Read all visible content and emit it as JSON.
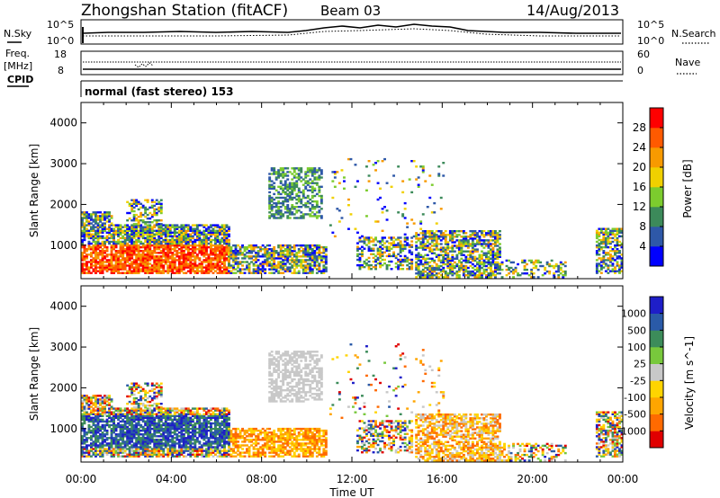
{
  "header": {
    "station": "Zhongshan Station (fitACF)",
    "beam": "Beam 03",
    "date": "14/Aug/2013"
  },
  "nsky_panel": {
    "left_label": "N.Sky",
    "right_label": "N.Search",
    "left_ticks": [
      "10^5",
      "10^0"
    ],
    "right_ticks": [
      "10^5",
      "10^0"
    ]
  },
  "freq_panel": {
    "left_label_line1": "Freq.",
    "left_label_line2": "[MHz]",
    "right_label": "Nave",
    "left_ticks": [
      "18",
      "8"
    ],
    "right_ticks": [
      "60",
      "0"
    ]
  },
  "cpid_panel": {
    "label": "CPID",
    "mode": "normal (fast stereo) 153"
  },
  "colors": {
    "power_scale": [
      "#0000ff",
      "#2e58a8",
      "#3c8a5a",
      "#7ccc2e",
      "#f0d000",
      "#f79a00",
      "#ff5a00",
      "#ff0000"
    ],
    "velocity_scale": [
      "#e00000",
      "#ff6a00",
      "#ffa500",
      "#ffd400",
      "#c8c8c8",
      "#78c83c",
      "#3c8c5a",
      "#2a5aa8",
      "#1e1ec8"
    ]
  },
  "chart_data": [
    {
      "type": "heatmap",
      "title": "",
      "xlabel": "",
      "ylabel": "Slant Range [km]",
      "x_ticks": [
        "00:00",
        "04:00",
        "08:00",
        "12:00",
        "16:00",
        "20:00",
        "00:00"
      ],
      "y_ticks": [
        "1000",
        "2000",
        "3000",
        "4000"
      ],
      "ylim": [
        180,
        4500
      ],
      "colorbar": {
        "label": "Power [dB]",
        "ticks": [
          "4",
          "8",
          "12",
          "16",
          "20",
          "24",
          "28"
        ],
        "range": [
          0,
          32
        ]
      }
    },
    {
      "type": "heatmap",
      "title": "",
      "xlabel": "Time UT",
      "ylabel": "Slant Range [km]",
      "x_ticks": [
        "00:00",
        "04:00",
        "08:00",
        "12:00",
        "16:00",
        "20:00",
        "00:00"
      ],
      "y_ticks": [
        "1000",
        "2000",
        "3000",
        "4000"
      ],
      "ylim": [
        180,
        4500
      ],
      "colorbar": {
        "label": "Velocity [m s^-1]",
        "ticks": [
          "1000",
          "500",
          "100",
          "25",
          "-25",
          "-100",
          "-500",
          "-1000"
        ]
      }
    }
  ]
}
